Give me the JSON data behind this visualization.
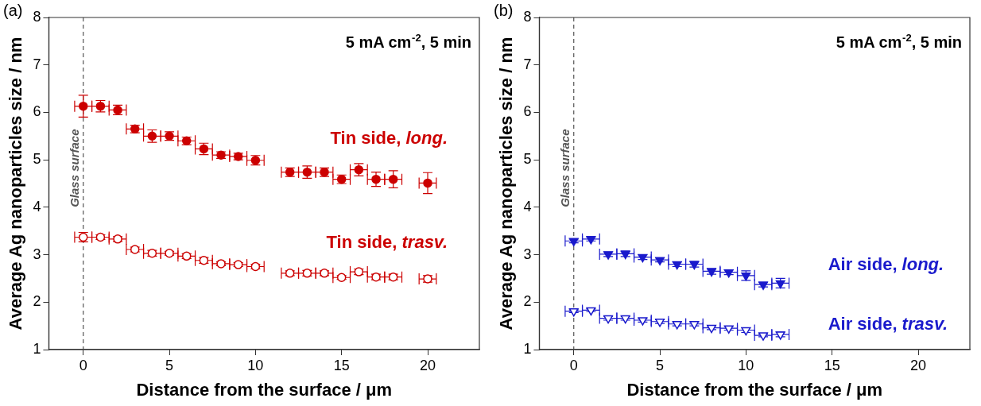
{
  "chart_data": [
    {
      "type": "scatter",
      "title": "(a)",
      "xlabel": "Distance from the surface / μm",
      "ylabel": "Average Ag nanoparticles size / nm",
      "xlim": [
        -2,
        23
      ],
      "xticks": [
        0,
        5,
        10,
        15,
        20
      ],
      "ylim": [
        1,
        8
      ],
      "yticks": [
        1,
        2,
        3,
        4,
        5,
        6,
        7,
        8
      ],
      "grid": false,
      "legend": false,
      "annotations": [
        "5 mA cm$^{-2}$, 5 min"
      ],
      "ref_lines": [
        {
          "axis": "x",
          "value": 0,
          "label": "Glass surface",
          "color": "#555555",
          "line_style": "dashed"
        }
      ],
      "series": [
        {
          "name": "Tin side, long.",
          "color": "#cc0000",
          "marker": "circle",
          "x": [
            0,
            1,
            2,
            3,
            4,
            5,
            6,
            7,
            8,
            9,
            10,
            12,
            13,
            14,
            15,
            16,
            17,
            18,
            20
          ],
          "values": [
            6.13,
            6.13,
            6.05,
            5.65,
            5.5,
            5.5,
            5.4,
            5.23,
            5.1,
            5.07,
            4.99,
            4.74,
            4.74,
            4.74,
            4.59,
            4.79,
            4.59,
            4.59,
            4.51
          ],
          "errors": [
            0.23,
            0.12,
            0.1,
            0.08,
            0.13,
            0.09,
            0.08,
            0.12,
            0.07,
            0.07,
            0.1,
            0.09,
            0.13,
            0.09,
            0.09,
            0.13,
            0.15,
            0.18,
            0.22
          ],
          "xerrors": [
            0.5,
            0.5,
            0.5,
            0.5,
            0.5,
            0.5,
            0.5,
            0.5,
            0.5,
            0.5,
            0.5,
            0.5,
            0.5,
            0.5,
            0.5,
            0.5,
            0.5,
            0.5,
            0.5
          ]
        },
        {
          "name": "Tin side, trasv.",
          "color": "#cc0000",
          "marker": "circle",
          "x": [
            0,
            1,
            2,
            3,
            4,
            5,
            6,
            7,
            8,
            9,
            10,
            12,
            13,
            14,
            15,
            16,
            17,
            18,
            20
          ],
          "values": [
            3.37,
            3.37,
            3.33,
            3.11,
            3.03,
            3.03,
            2.97,
            2.88,
            2.81,
            2.79,
            2.75,
            2.61,
            2.61,
            2.61,
            2.52,
            2.64,
            2.53,
            2.53,
            2.49
          ],
          "errors": [
            0.1,
            0.05,
            0.05,
            0.05,
            0.06,
            0.04,
            0.05,
            0.06,
            0.04,
            0.04,
            0.05,
            0.05,
            0.06,
            0.05,
            0.04,
            0.06,
            0.06,
            0.06,
            0.07
          ],
          "xerrors": [
            0.5,
            0.5,
            0.5,
            0.5,
            0.5,
            0.5,
            0.5,
            0.5,
            0.5,
            0.5,
            0.5,
            0.5,
            0.5,
            0.5,
            0.5,
            0.5,
            0.5,
            0.5,
            0.5
          ]
        }
      ]
    },
    {
      "type": "scatter",
      "title": "(b)",
      "xlabel": "Distance from the surface / μm",
      "ylabel": "Average Ag nanoparticles size / nm",
      "xlim": [
        -2,
        23
      ],
      "xticks": [
        0,
        5,
        10,
        15,
        20
      ],
      "ylim": [
        1,
        8
      ],
      "yticks": [
        1,
        2,
        3,
        4,
        5,
        6,
        7,
        8
      ],
      "grid": false,
      "legend": false,
      "annotations": [
        "5 mA cm$^{-2}$, 5 min"
      ],
      "ref_lines": [
        {
          "axis": "x",
          "value": 0,
          "label": "Glass surface",
          "color": "#555555",
          "line_style": "dashed"
        }
      ],
      "series": [
        {
          "name": "Air side, long.",
          "color": "#1a1acc",
          "marker": "triangle",
          "x": [
            0,
            1,
            2,
            3,
            4,
            5,
            6,
            7,
            8,
            9,
            10,
            11,
            12
          ],
          "values": [
            3.29,
            3.33,
            3.01,
            3.02,
            2.95,
            2.89,
            2.8,
            2.8,
            2.65,
            2.63,
            2.56,
            2.37,
            2.4
          ],
          "errors": [
            0.04,
            0.04,
            0.05,
            0.06,
            0.05,
            0.04,
            0.05,
            0.06,
            0.06,
            0.05,
            0.1,
            0.05,
            0.1
          ],
          "xerrors": [
            0.5,
            0.5,
            0.5,
            0.5,
            0.5,
            0.5,
            0.5,
            0.5,
            0.5,
            0.5,
            0.5,
            0.5,
            0.5
          ]
        },
        {
          "name": "Air side, trasv.",
          "color": "#1a1acc",
          "marker": "triangle",
          "x": [
            0,
            1,
            2,
            3,
            4,
            5,
            6,
            7,
            8,
            9,
            10,
            11,
            12
          ],
          "values": [
            1.81,
            1.83,
            1.66,
            1.66,
            1.62,
            1.59,
            1.54,
            1.54,
            1.46,
            1.45,
            1.41,
            1.3,
            1.32
          ],
          "errors": [
            0.03,
            0.03,
            0.04,
            0.04,
            0.04,
            0.04,
            0.04,
            0.04,
            0.04,
            0.04,
            0.05,
            0.03,
            0.05
          ],
          "xerrors": [
            0.5,
            0.5,
            0.5,
            0.5,
            0.5,
            0.5,
            0.5,
            0.5,
            0.5,
            0.5,
            0.5,
            0.5,
            0.5
          ]
        }
      ]
    }
  ]
}
